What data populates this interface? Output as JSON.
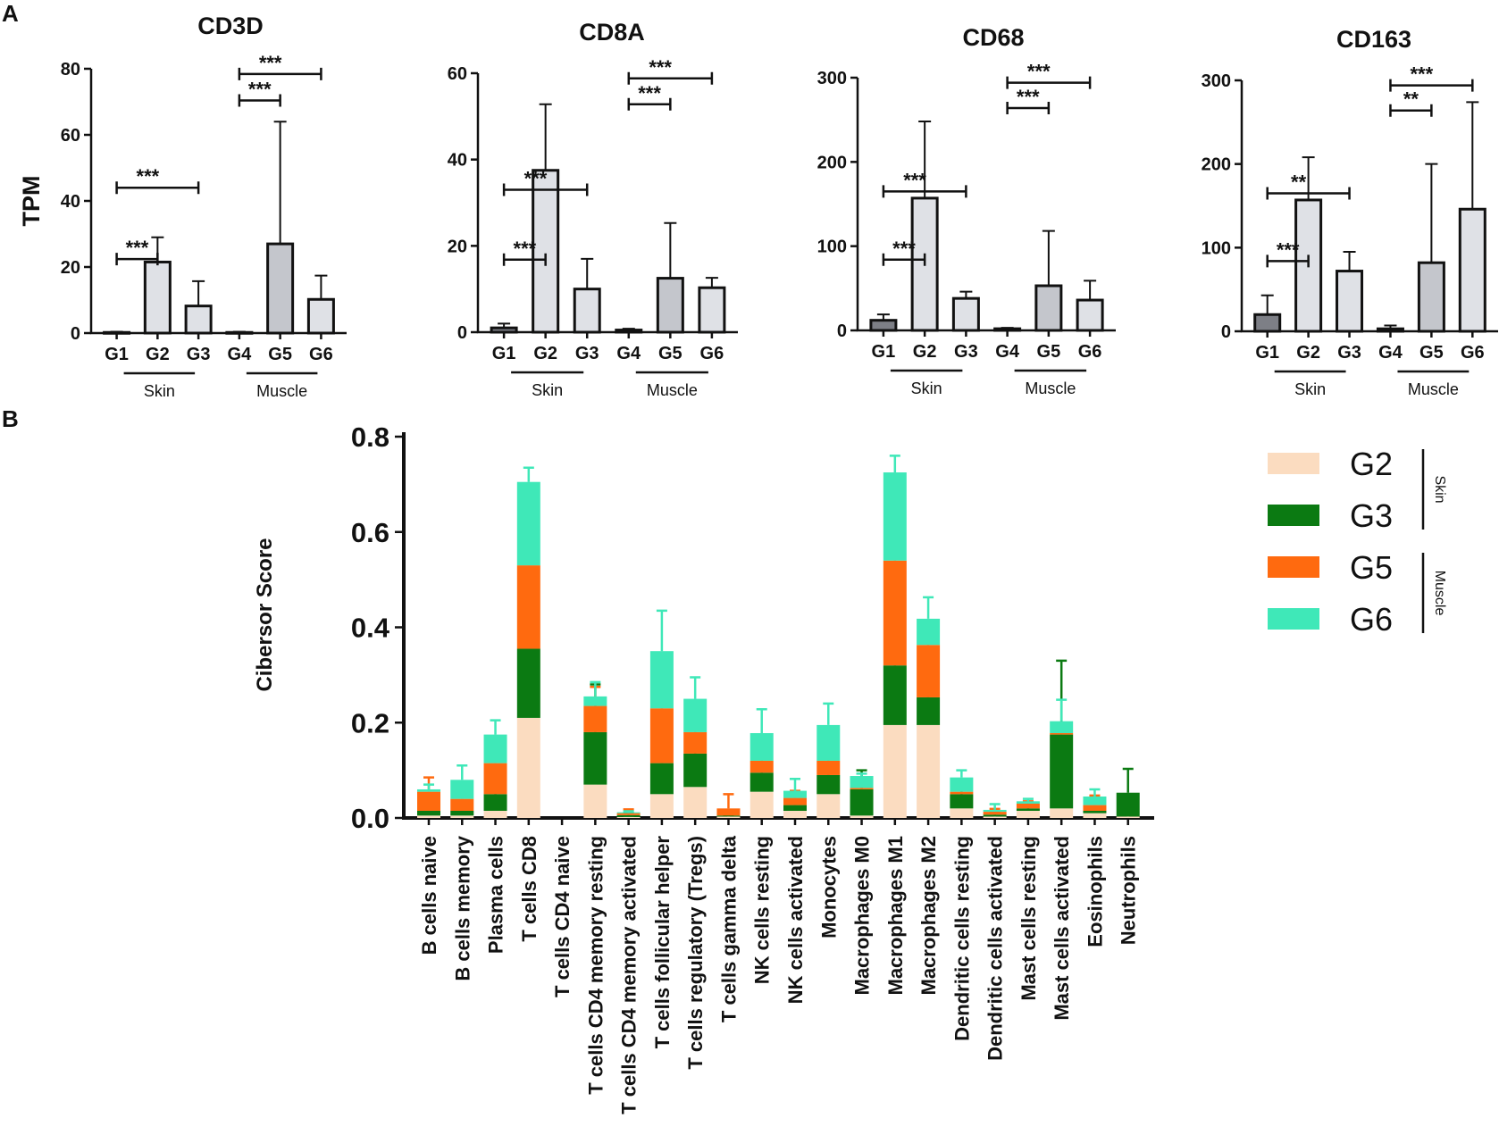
{
  "panel_labels": {
    "a": "A",
    "b": "B"
  },
  "chart_data": [
    {
      "type": "bar",
      "title": "CD3D",
      "ylabel": "TPM",
      "ylim": [
        0,
        80
      ],
      "yticks": [
        "0",
        "20",
        "40",
        "60",
        "80"
      ],
      "categories": [
        "G1",
        "G2",
        "G3",
        "G4",
        "G5",
        "G6"
      ],
      "values": [
        0.2,
        21.5,
        8.2,
        0.2,
        27.0,
        10.2
      ],
      "errors": [
        0.2,
        7.5,
        7.5,
        0.2,
        37.0,
        7.2
      ],
      "bar_colors": [
        "#7d7f86",
        "#dfe1e6",
        "#dfe1e6",
        "#7d7f86",
        "#c4c6cc",
        "#dfe1e6"
      ],
      "groups": [
        {
          "label": "Skin",
          "range": [
            0,
            2
          ]
        },
        {
          "label": "Muscle",
          "range": [
            3,
            5
          ]
        }
      ],
      "comparisons": [
        {
          "from": 0,
          "to": 1,
          "label": "***"
        },
        {
          "from": 0,
          "to": 2,
          "label": "***"
        },
        {
          "from": 3,
          "to": 4,
          "label": "***"
        },
        {
          "from": 3,
          "to": 5,
          "label": "***"
        }
      ]
    },
    {
      "type": "bar",
      "title": "CD8A",
      "ylabel": "",
      "ylim": [
        0,
        60
      ],
      "yticks": [
        "0",
        "20",
        "40",
        "60"
      ],
      "categories": [
        "G1",
        "G2",
        "G3",
        "G4",
        "G5",
        "G6"
      ],
      "values": [
        1.0,
        37.5,
        10.0,
        0.5,
        12.5,
        10.3
      ],
      "errors": [
        1.0,
        15.3,
        7.0,
        0.3,
        12.8,
        2.3
      ],
      "bar_colors": [
        "#7d7f86",
        "#dfe1e6",
        "#dfe1e6",
        "#7d7f86",
        "#c4c6cc",
        "#dfe1e6"
      ],
      "groups": [
        {
          "label": "Skin",
          "range": [
            0,
            2
          ]
        },
        {
          "label": "Muscle",
          "range": [
            3,
            5
          ]
        }
      ],
      "comparisons": [
        {
          "from": 0,
          "to": 1,
          "label": "***"
        },
        {
          "from": 0,
          "to": 2,
          "label": "***"
        },
        {
          "from": 3,
          "to": 4,
          "label": "***"
        },
        {
          "from": 3,
          "to": 5,
          "label": "***"
        }
      ]
    },
    {
      "type": "bar",
      "title": "CD68",
      "ylabel": "",
      "ylim": [
        0,
        300
      ],
      "yticks": [
        "0",
        "100",
        "200",
        "300"
      ],
      "categories": [
        "G1",
        "G2",
        "G3",
        "G4",
        "G5",
        "G6"
      ],
      "values": [
        12,
        157,
        38,
        2,
        53,
        36
      ],
      "errors": [
        7,
        91,
        8,
        1,
        65,
        23
      ],
      "bar_colors": [
        "#7d7f86",
        "#dfe1e6",
        "#dfe1e6",
        "#7d7f86",
        "#c4c6cc",
        "#dfe1e6"
      ],
      "groups": [
        {
          "label": "Skin",
          "range": [
            0,
            2
          ]
        },
        {
          "label": "Muscle",
          "range": [
            3,
            5
          ]
        }
      ],
      "comparisons": [
        {
          "from": 0,
          "to": 1,
          "label": "***"
        },
        {
          "from": 0,
          "to": 2,
          "label": "***"
        },
        {
          "from": 3,
          "to": 4,
          "label": "***"
        },
        {
          "from": 3,
          "to": 5,
          "label": "***"
        }
      ]
    },
    {
      "type": "bar",
      "title": "CD163",
      "ylabel": "",
      "ylim": [
        0,
        300
      ],
      "yticks": [
        "0",
        "100",
        "200",
        "300"
      ],
      "categories": [
        "G1",
        "G2",
        "G3",
        "G4",
        "G5",
        "G6"
      ],
      "values": [
        20,
        157,
        72,
        3,
        82,
        146
      ],
      "errors": [
        23,
        51,
        23,
        4,
        118,
        128
      ],
      "bar_colors": [
        "#7d7f86",
        "#dfe1e6",
        "#dfe1e6",
        "#7d7f86",
        "#c4c6cc",
        "#dfe1e6"
      ],
      "groups": [
        {
          "label": "Skin",
          "range": [
            0,
            2
          ]
        },
        {
          "label": "Muscle",
          "range": [
            3,
            5
          ]
        }
      ],
      "comparisons": [
        {
          "from": 0,
          "to": 1,
          "label": "***"
        },
        {
          "from": 0,
          "to": 2,
          "label": "**"
        },
        {
          "from": 3,
          "to": 4,
          "label": "**"
        },
        {
          "from": 3,
          "to": 5,
          "label": "***"
        }
      ]
    },
    {
      "type": "bar",
      "stacked": true,
      "title": "",
      "ylabel": "Cibersor Score",
      "ylim": [
        0,
        0.8
      ],
      "yticks": [
        "0.0",
        "0.2",
        "0.4",
        "0.6",
        "0.8"
      ],
      "categories": [
        "B cells naive",
        "B cells memory",
        "Plasma cells",
        "T cells CD8",
        "T cells CD4 naive",
        "T cells CD4 memory resting",
        "T cells CD4 memory activated",
        "T cells follicular helper",
        "T cells regulatory (Tregs)",
        "T cells gamma delta",
        "NK cells resting",
        "NK cells activated",
        "Monocytes",
        "Macrophages M0",
        "Macrophages M1",
        "Macrophages M2",
        "Dendritic cells resting",
        "Dendritic cells activated",
        "Mast cells resting",
        "Mast cells activated",
        "Eosinophils",
        "Neutrophils"
      ],
      "series": [
        {
          "name": "G2",
          "color": "#fbdcc0",
          "values": [
            0.005,
            0.005,
            0.015,
            0.21,
            0,
            0.07,
            0.002,
            0.05,
            0.065,
            0.003,
            0.055,
            0.015,
            0.05,
            0.005,
            0.195,
            0.195,
            0.02,
            0.003,
            0.015,
            0.02,
            0.01,
            0.003
          ],
          "errors": [
            0.01,
            0.008,
            0.01,
            0.02,
            0,
            0.03,
            0.002,
            0.005,
            0.02,
            0.003,
            0.035,
            0.01,
            0.03,
            0.005,
            0.01,
            0.06,
            0.01,
            0.003,
            0.005,
            0.04,
            0.01,
            0.003
          ]
        },
        {
          "name": "G3",
          "color": "#0b7a12",
          "values": [
            0.01,
            0.01,
            0.035,
            0.145,
            0,
            0.11,
            0.004,
            0.065,
            0.07,
            0.002,
            0.04,
            0.012,
            0.04,
            0.055,
            0.125,
            0.058,
            0.03,
            0.004,
            0.005,
            0.155,
            0.005,
            0.05
          ],
          "errors": [
            0.015,
            0.01,
            0.035,
            0.045,
            0,
            0.1,
            0.004,
            0.03,
            0.03,
            0.002,
            0.02,
            0.01,
            0.015,
            0.04,
            0.035,
            0.04,
            0.015,
            0.004,
            0.004,
            0.155,
            0.005,
            0.05
          ]
        },
        {
          "name": "G5",
          "color": "#ff6a0f",
          "values": [
            0.04,
            0.025,
            0.065,
            0.175,
            0,
            0.055,
            0.004,
            0.115,
            0.045,
            0.015,
            0.025,
            0.015,
            0.03,
            0.003,
            0.22,
            0.11,
            0.005,
            0.006,
            0.01,
            0.003,
            0.012,
            0
          ],
          "errors": [
            0.03,
            0.02,
            0.03,
            0.004,
            0,
            0.04,
            0.008,
            0.04,
            0.05,
            0.03,
            0.005,
            0.015,
            0.025,
            0.003,
            0.035,
            0.035,
            0.004,
            0.006,
            0.005,
            0.005,
            0.02,
            0
          ]
        },
        {
          "name": "G6",
          "color": "#3fe8b8",
          "values": [
            0.005,
            0.04,
            0.06,
            0.175,
            0,
            0.02,
            0.002,
            0.12,
            0.07,
            0,
            0.058,
            0.015,
            0.075,
            0.025,
            0.185,
            0.055,
            0.03,
            0.004,
            0.005,
            0.025,
            0.018,
            0
          ],
          "errors": [
            0.01,
            0.03,
            0.03,
            0.03,
            0,
            0.03,
            0.002,
            0.085,
            0.045,
            0,
            0.05,
            0.025,
            0.045,
            0.005,
            0.035,
            0.045,
            0.015,
            0.012,
            0.005,
            0.045,
            0.015,
            0
          ]
        }
      ],
      "legend": {
        "placement": "right",
        "groups": [
          {
            "label": "Skin",
            "entries": [
              "G2",
              "G3"
            ]
          },
          {
            "label": "Muscle",
            "entries": [
              "G5",
              "G6"
            ]
          }
        ]
      }
    }
  ]
}
